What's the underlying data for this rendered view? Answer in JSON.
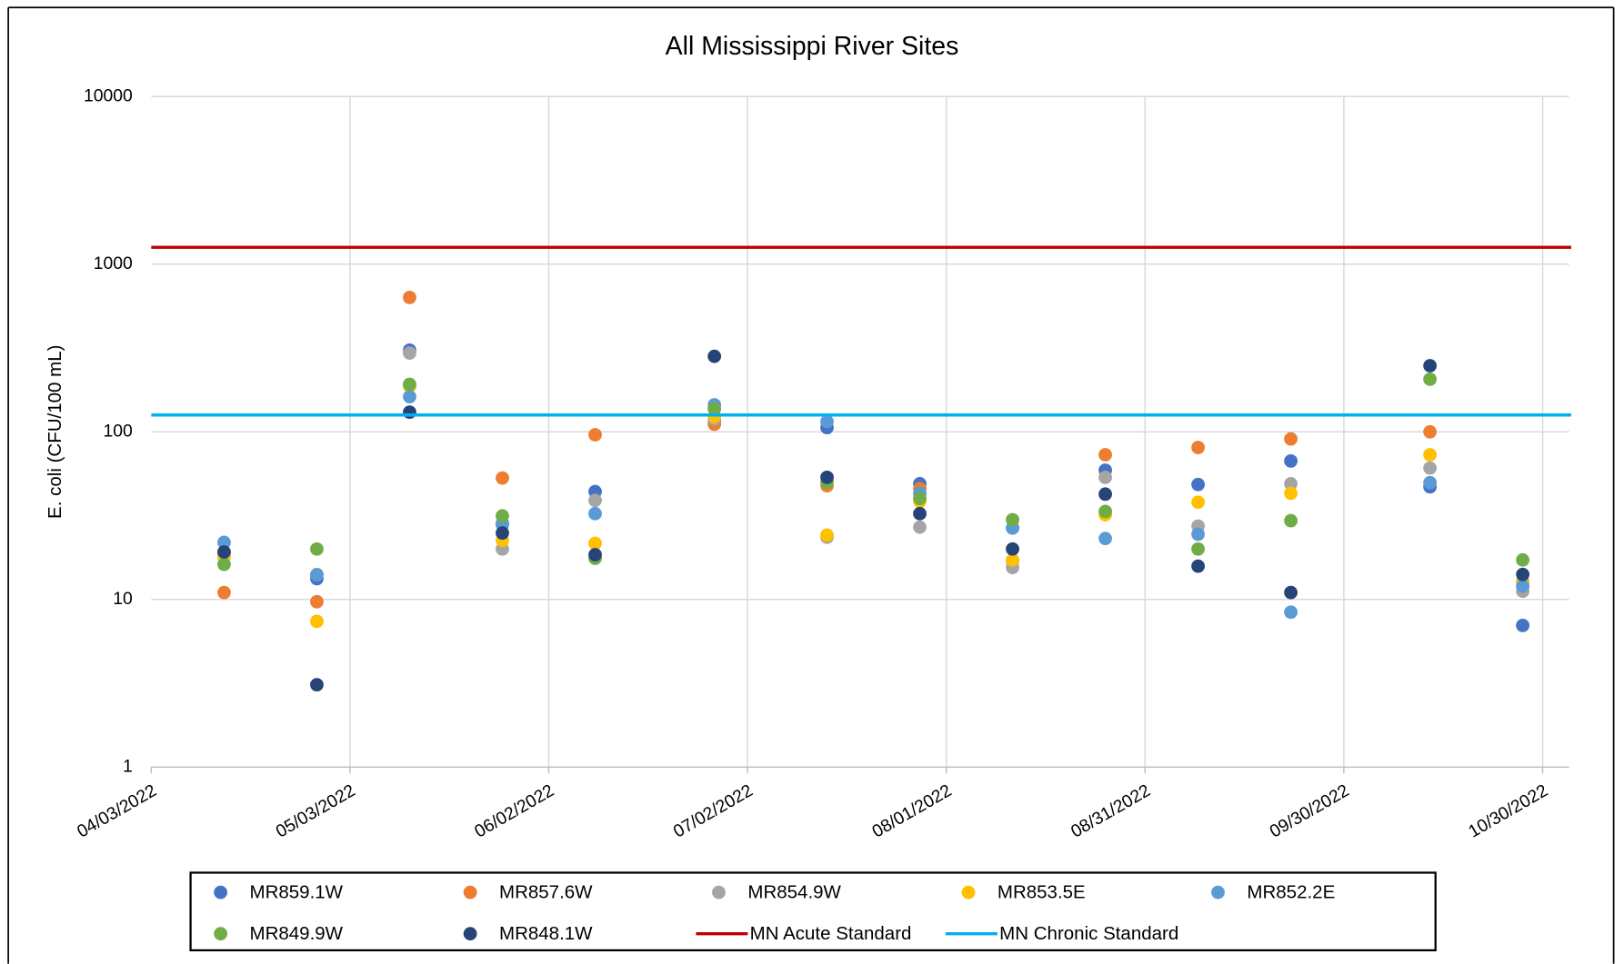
{
  "chart_data": {
    "type": "scatter",
    "title": "All Mississippi River Sites",
    "y_label": "E. coli (CFU/100 mL)",
    "yscale": "log",
    "ylim": [
      1,
      10000
    ],
    "yticks": [
      1,
      10,
      100,
      1000,
      10000
    ],
    "xlim": [
      "04/03/2022",
      "11/03/2022"
    ],
    "xticks": [
      "04/03/2022",
      "05/03/2022",
      "06/02/2022",
      "07/02/2022",
      "08/01/2022",
      "08/31/2022",
      "09/30/2022",
      "10/30/2022"
    ],
    "grid": true,
    "legend": "bottom",
    "x": [
      "04/14/2022",
      "04/28/2022",
      "05/12/2022",
      "05/26/2022",
      "06/09/2022",
      "06/27/2022",
      "07/14/2022",
      "07/28/2022",
      "08/11/2022",
      "08/25/2022",
      "09/08/2022",
      "09/22/2022",
      "10/13/2022",
      "10/27/2022"
    ],
    "series": [
      {
        "name": "MR859.1W",
        "color": "#4472c4",
        "values": [
          19,
          13.3,
          307,
          28,
          44,
          115,
          106,
          49,
          26.7,
          59,
          48.5,
          67,
          47,
          7
        ]
      },
      {
        "name": "MR857.6W",
        "color": "#ed7d31",
        "values": [
          11,
          9.7,
          633,
          53,
          96,
          111,
          47.7,
          45.8,
          17,
          73,
          80.6,
          90.6,
          100,
          12.7
        ]
      },
      {
        "name": "MR854.9W",
        "color": "#a5a5a5",
        "values": [
          18,
          14.1,
          295,
          20,
          39,
          119,
          23.5,
          27,
          15.5,
          53.5,
          27.4,
          49,
          60.8,
          11.2
        ]
      },
      {
        "name": "MR853.5E",
        "color": "#ffc000",
        "values": [
          18,
          7.4,
          187,
          22.5,
          21.6,
          123,
          24.2,
          38.5,
          17.2,
          32,
          38,
          43,
          73,
          12.5
        ]
      },
      {
        "name": "MR852.2E",
        "color": "#5b9bd5",
        "values": [
          21.9,
          14,
          162,
          28.5,
          32.5,
          145,
          115,
          43,
          26.7,
          23.1,
          24.5,
          8.4,
          49.7,
          12
        ]
      },
      {
        "name": "MR849.9W",
        "color": "#70ad47",
        "values": [
          16.2,
          20,
          192,
          31.5,
          17.6,
          137,
          50,
          40,
          29.9,
          33.5,
          20,
          29.5,
          206,
          17.2
        ]
      },
      {
        "name": "MR848.1W",
        "color": "#264478",
        "values": [
          19.2,
          3.1,
          131,
          24.9,
          18.5,
          282,
          53.5,
          32.5,
          20,
          42.5,
          15.8,
          11,
          248,
          14.1
        ]
      }
    ],
    "reference_lines": [
      {
        "name": "MN Acute Standard",
        "color": "#c00000",
        "value": 1260
      },
      {
        "name": "MN Chronic Standard",
        "color": "#00b0f0",
        "value": 126
      }
    ]
  }
}
